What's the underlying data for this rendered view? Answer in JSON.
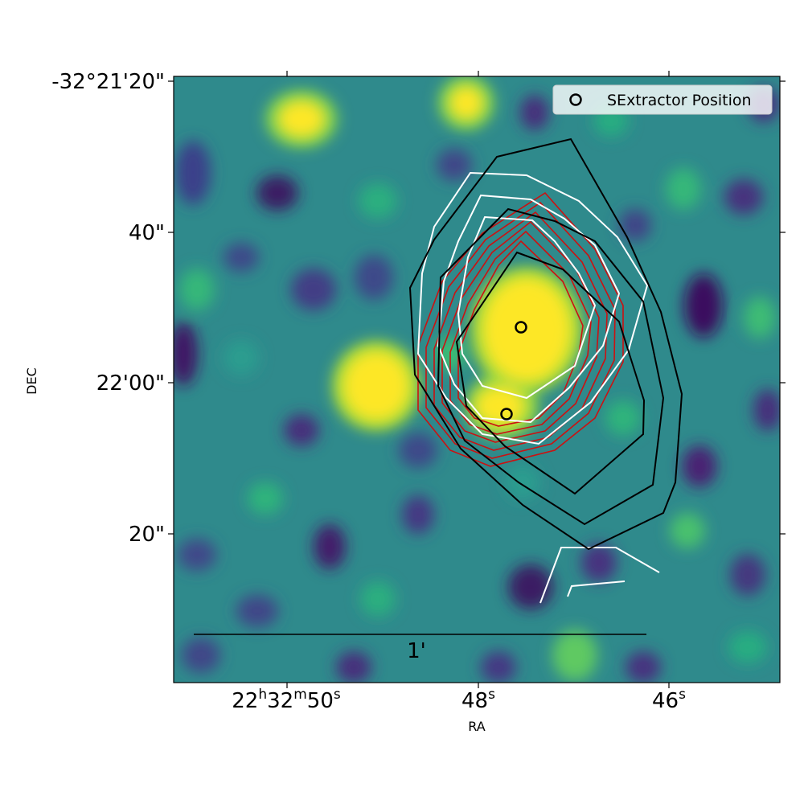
{
  "figure": {
    "xlabel": "RA",
    "ylabel": "DEC",
    "x_ticks": [
      {
        "label_main": "22",
        "sup1": "h",
        "mid1": "32",
        "sup2": "m",
        "mid2": "50",
        "sup3": "s"
      },
      {
        "label_main": "48",
        "sup1": "s"
      },
      {
        "label_main": "46",
        "sup1": "s"
      }
    ],
    "y_ticks": [
      "-32°21'20\"",
      "40\"",
      "22'00\"",
      "20\""
    ],
    "legend": {
      "label": "SExtractor Position",
      "marker": "open-circle",
      "position": "top-right"
    },
    "scale_bar": {
      "label": "1'"
    },
    "colors": {
      "colormap": "viridis",
      "contour_red": "#cc1111",
      "contour_black": "#000000",
      "contour_white": "#ffffff",
      "marker": "#000000"
    }
  }
}
